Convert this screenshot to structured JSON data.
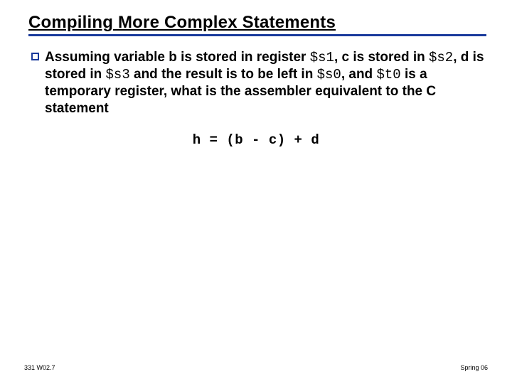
{
  "colors": {
    "title_underline": "#1a3a9c",
    "bullet_border": "#1a3a9c",
    "title_text": "#000000"
  },
  "title": "Compiling More Complex Statements",
  "bullet": {
    "parts": [
      {
        "t": "Assuming variable b is stored in register ",
        "mono": false
      },
      {
        "t": "$s1",
        "mono": true
      },
      {
        "t": ", c is stored in ",
        "mono": false
      },
      {
        "t": "$s2",
        "mono": true
      },
      {
        "t": ", d is stored in ",
        "mono": false
      },
      {
        "t": "$s3",
        "mono": true
      },
      {
        "t": " and the result is to be left in ",
        "mono": false
      },
      {
        "t": "$s0",
        "mono": true
      },
      {
        "t": ", and ",
        "mono": false
      },
      {
        "t": "$t0",
        "mono": true
      },
      {
        "t": " is a temporary register, what is the assembler equivalent to the C statement",
        "mono": false
      }
    ]
  },
  "code": "h = (b - c) + d",
  "footer": {
    "left": "331 W02.7",
    "right": "Spring 06"
  }
}
